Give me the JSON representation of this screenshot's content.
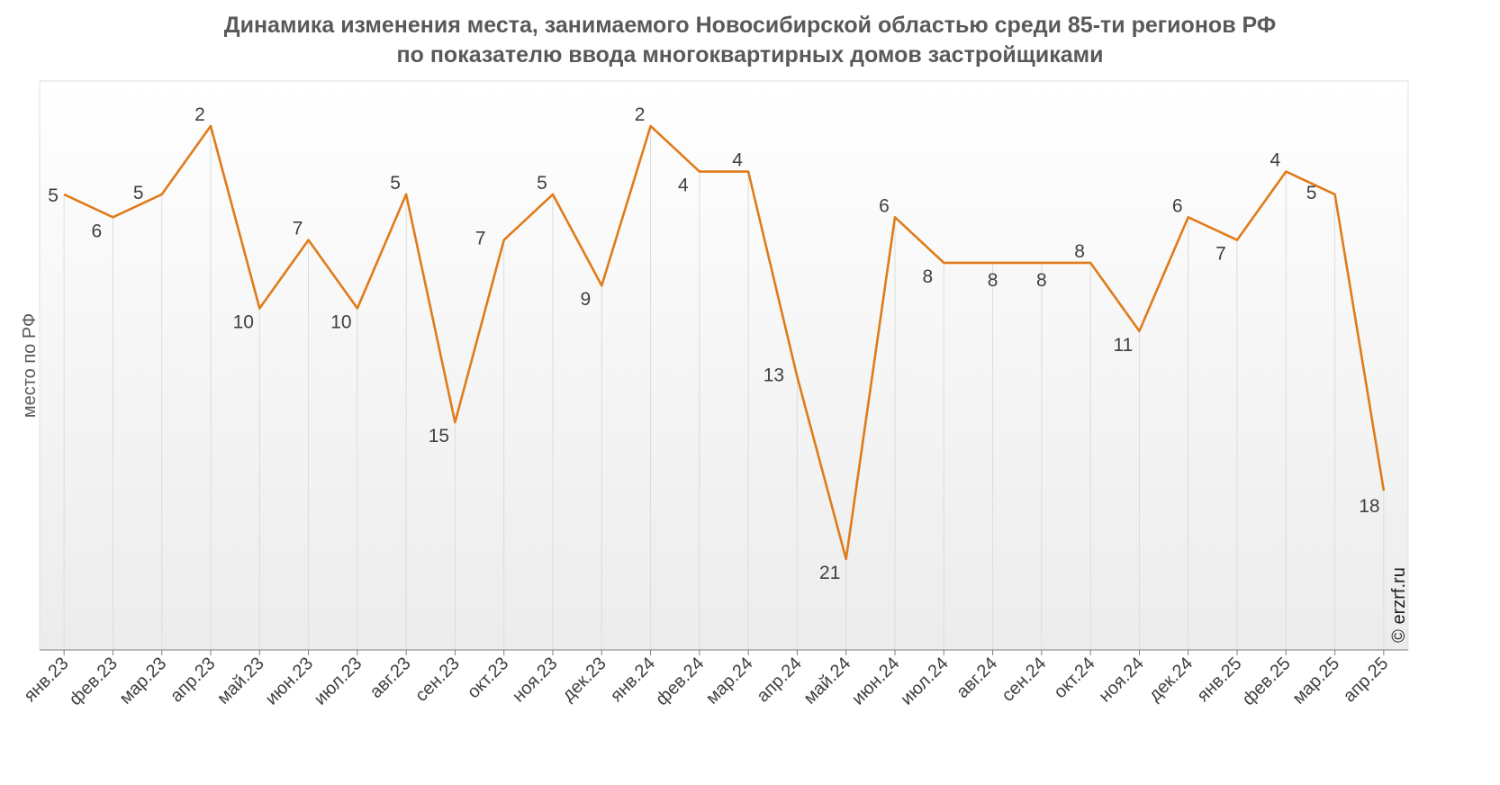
{
  "chart_data": {
    "type": "line",
    "title_line1": "Динамика изменения места, занимаемого Новосибирской областью среди 85-ти регионов РФ",
    "title_line2": "по показателю ввода многоквартирных домов застройщиками",
    "ylabel": "место по РФ",
    "credit": "© erzrf.ru",
    "y_inverted": true,
    "ylim": [
      1,
      24
    ],
    "grid": "vertical",
    "line_color": "#E07B1A",
    "categories": [
      "янв.23",
      "фев.23",
      "мар.23",
      "апр.23",
      "май.23",
      "июн.23",
      "июл.23",
      "авг.23",
      "сен.23",
      "окт.23",
      "ноя.23",
      "дек.23",
      "янв.24",
      "фев.24",
      "мар.24",
      "апр.24",
      "май.24",
      "июн.24",
      "июл.24",
      "авг.24",
      "сен.24",
      "окт.24",
      "ноя.24",
      "дек.24",
      "янв.25",
      "фев.25",
      "мар.25",
      "апр.25"
    ],
    "values": [
      5,
      6,
      5,
      2,
      10,
      7,
      10,
      5,
      15,
      7,
      5,
      9,
      2,
      4,
      4,
      13,
      21,
      6,
      8,
      8,
      8,
      8,
      11,
      6,
      7,
      4,
      5,
      18
    ],
    "value_labels": [
      "5",
      "6",
      "5",
      "2",
      "10",
      "7",
      "10",
      "5",
      "15",
      "7",
      "5",
      "9",
      "2",
      "4",
      "4",
      "13",
      "21",
      "6",
      "8",
      "8",
      "8",
      "8",
      "11",
      "6",
      "7",
      "4",
      "5",
      "18"
    ]
  }
}
